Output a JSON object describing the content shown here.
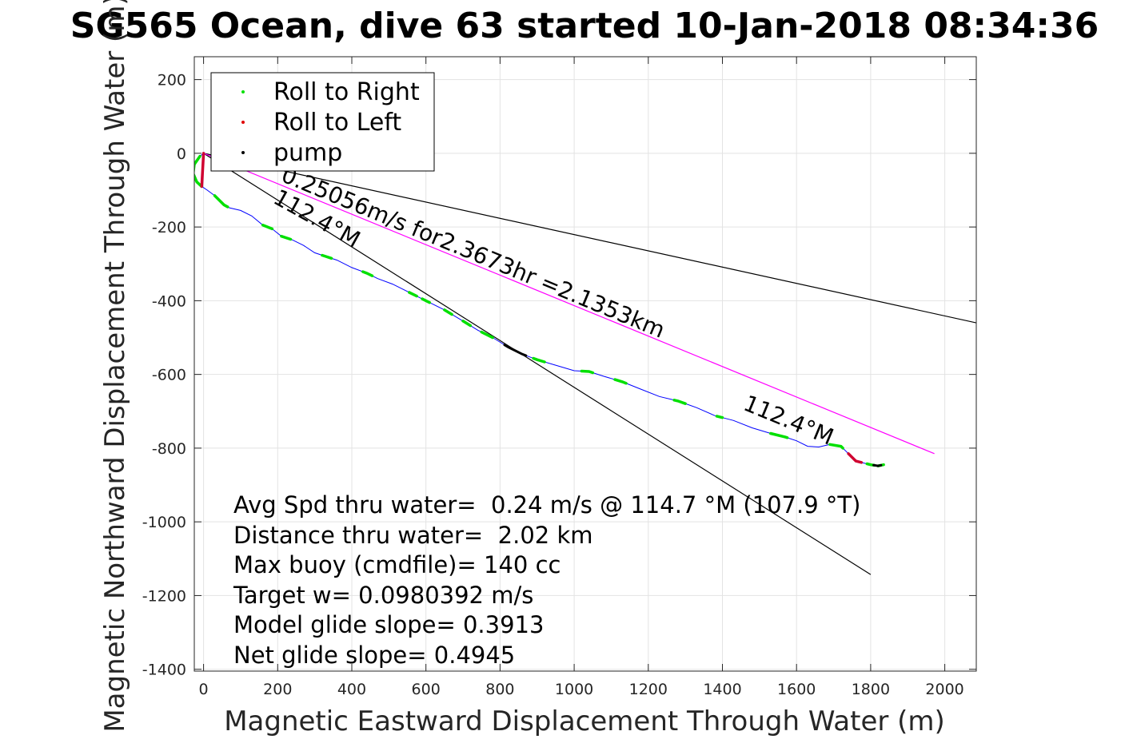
{
  "chart_data": {
    "type": "line",
    "title": "SG565 Ocean, dive 63 started 10-Jan-2018 08:34:36",
    "xlabel": "Magnetic Eastward Displacement Through Water (m)",
    "ylabel": "Magnetic Northward Displacement Through Water (m)",
    "xlim": [
      -25,
      2085
    ],
    "ylim": [
      -1405,
      262
    ],
    "xticks": [
      0,
      200,
      400,
      600,
      800,
      1000,
      1200,
      1400,
      1600,
      1800,
      2000
    ],
    "yticks": [
      200,
      0,
      -200,
      -400,
      -600,
      -800,
      -1000,
      -1200,
      -1400
    ],
    "grid": true,
    "legend_position": "top-left",
    "legend": [
      {
        "label": "Roll to Right",
        "color": "#00e000"
      },
      {
        "label": "Roll to Left",
        "color": "#e00000"
      },
      {
        "label": "pump",
        "color": "#000000"
      }
    ],
    "track": {
      "color": "#0000ff",
      "x": [
        0,
        -10,
        -25,
        -28,
        -18,
        -5,
        10,
        30,
        55,
        70,
        100,
        130,
        160,
        185,
        210,
        240,
        270,
        300,
        330,
        360,
        400,
        440,
        470,
        510,
        560,
        600,
        650,
        700,
        740,
        780,
        820,
        860,
        900,
        950,
        1000,
        1040,
        1080,
        1130,
        1180,
        1230,
        1280,
        1330,
        1380,
        1430,
        1480,
        1530,
        1570,
        1600,
        1630,
        1660,
        1690,
        1720,
        1740,
        1760,
        1780,
        1800,
        1820,
        1835
      ],
      "y": [
        0,
        -8,
        -30,
        -55,
        -78,
        -90,
        -100,
        -115,
        -140,
        -148,
        -155,
        -170,
        -195,
        -205,
        -225,
        -235,
        -250,
        -270,
        -280,
        -290,
        -310,
        -325,
        -340,
        -355,
        -380,
        -400,
        -425,
        -455,
        -480,
        -500,
        -525,
        -545,
        -560,
        -575,
        -590,
        -592,
        -605,
        -620,
        -640,
        -660,
        -672,
        -690,
        -712,
        -725,
        -745,
        -760,
        -770,
        -780,
        -795,
        -797,
        -790,
        -795,
        -815,
        -835,
        -840,
        -845,
        -848,
        -845
      ]
    },
    "reference_lines": [
      {
        "name": "heading-112-4-near",
        "x": [
          0,
          1800
        ],
        "y": [
          0,
          -1143
        ],
        "color": "#000000"
      },
      {
        "name": "heading-far",
        "x": [
          0,
          2085
        ],
        "y": [
          0,
          -460
        ],
        "color": "#000000"
      },
      {
        "name": "current-vector",
        "x": [
          0,
          1972
        ],
        "y": [
          0,
          -815
        ],
        "color": "#ff00ff"
      }
    ],
    "annotations": [
      {
        "name": "heading-annotation-top",
        "text": "112.4°M"
      },
      {
        "name": "heading-annotation-bottom",
        "text": "112.4°M"
      },
      {
        "name": "current-annotation",
        "text": "0.25056m/s for2.3673hr =2.1353km"
      }
    ],
    "roll_right_segments_x": [
      [
        -28,
        -5
      ],
      [
        30,
        65
      ],
      [
        160,
        185
      ],
      [
        210,
        235
      ],
      [
        320,
        345
      ],
      [
        430,
        455
      ],
      [
        555,
        575
      ],
      [
        590,
        610
      ],
      [
        650,
        670
      ],
      [
        700,
        720
      ],
      [
        750,
        780
      ],
      [
        890,
        920
      ],
      [
        1020,
        1050
      ],
      [
        1110,
        1140
      ],
      [
        1270,
        1300
      ],
      [
        1385,
        1400
      ],
      [
        1530,
        1575
      ],
      [
        1690,
        1725
      ],
      [
        1790,
        1810
      ],
      [
        1820,
        1840
      ]
    ],
    "roll_left_segments_x": [
      [
        -4,
        8
      ],
      [
        1740,
        1775
      ]
    ],
    "pump_segments_x": [
      [
        812,
        870
      ],
      [
        1808,
        1828
      ]
    ],
    "stats": [
      "Avg Spd thru water=  0.24 m/s @ 114.7 °M (107.9 °T)",
      "Distance thru water=  2.02 km",
      "Max buoy (cmdfile)= 140 cc",
      "Target w= 0.0980392 m/s",
      "Model glide slope= 0.3913",
      "Net glide slope= 0.4945"
    ]
  }
}
